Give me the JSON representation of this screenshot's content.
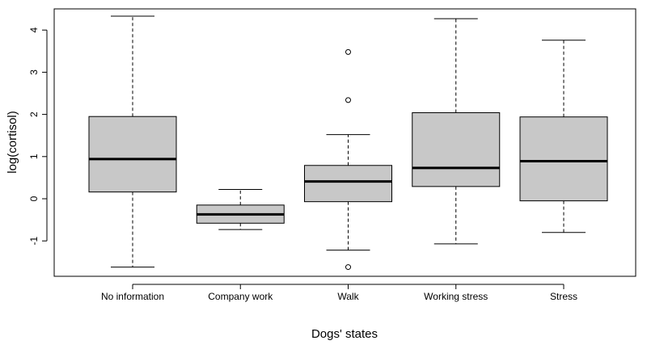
{
  "chart_data": {
    "type": "boxplot",
    "xlabel": "Dogs' states",
    "ylabel": "log(cortisol)",
    "ylim": [
      -1.8,
      4.4
    ],
    "yticks": [
      -1,
      0,
      1,
      2,
      3,
      4
    ],
    "box_color": "#c8c8c8",
    "grid": false,
    "categories": [
      "No information",
      "Company work",
      "Walk",
      "Working stress",
      "Stress"
    ],
    "boxes": [
      {
        "category": "No information",
        "whisker_low": -1.62,
        "q1": 0.16,
        "median": 0.94,
        "q3": 1.95,
        "whisker_high": 4.33,
        "outliers": []
      },
      {
        "category": "Company work",
        "whisker_low": -0.73,
        "q1": -0.58,
        "median": -0.37,
        "q3": -0.15,
        "whisker_high": 0.22,
        "outliers": []
      },
      {
        "category": "Walk",
        "whisker_low": -1.22,
        "q1": -0.07,
        "median": 0.41,
        "q3": 0.79,
        "whisker_high": 1.52,
        "outliers": [
          3.48,
          2.34,
          -1.62
        ]
      },
      {
        "category": "Working stress",
        "whisker_low": -1.07,
        "q1": 0.29,
        "median": 0.73,
        "q3": 2.04,
        "whisker_high": 4.27,
        "outliers": []
      },
      {
        "category": "Stress",
        "whisker_low": -0.8,
        "q1": -0.05,
        "median": 0.89,
        "q3": 1.94,
        "whisker_high": 3.76,
        "outliers": []
      }
    ]
  }
}
